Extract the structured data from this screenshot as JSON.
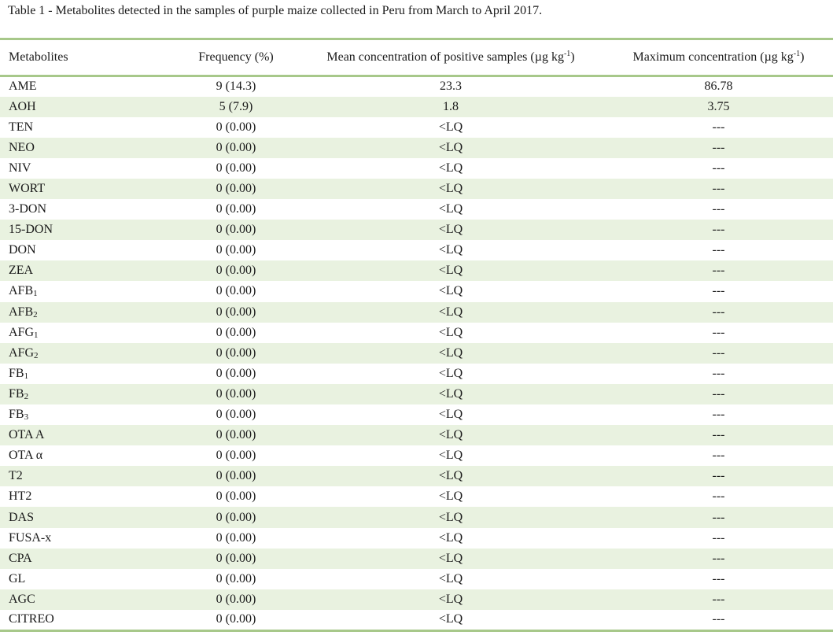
{
  "caption": "Table 1 - Metabolites detected in the samples of purple maize collected in Peru from March to April 2017.",
  "headers": {
    "metabolites": "Metabolites",
    "frequency": "Frequency (%)",
    "mean_prefix": "Mean concentration of positive samples (µg kg",
    "mean_sup": "-1",
    "mean_suffix": ")",
    "max_prefix": "Maximum concentration (µg kg",
    "max_sup": "-1",
    "max_suffix": ")"
  },
  "rows": [
    {
      "name": "AME",
      "sub": "",
      "frequency": "9 (14.3)",
      "mean": "23.3",
      "max": "86.78"
    },
    {
      "name": "AOH",
      "sub": "",
      "frequency": "5 (7.9)",
      "mean": "1.8",
      "max": "3.75"
    },
    {
      "name": "TEN",
      "sub": "",
      "frequency": "0 (0.00)",
      "mean": "<LQ",
      "max": "---"
    },
    {
      "name": "NEO",
      "sub": "",
      "frequency": "0 (0.00)",
      "mean": "<LQ",
      "max": "---"
    },
    {
      "name": "NIV",
      "sub": "",
      "frequency": "0 (0.00)",
      "mean": "<LQ",
      "max": "---"
    },
    {
      "name": "WORT",
      "sub": "",
      "frequency": "0 (0.00)",
      "mean": "<LQ",
      "max": "---"
    },
    {
      "name": "3-DON",
      "sub": "",
      "frequency": "0 (0.00)",
      "mean": "<LQ",
      "max": "---"
    },
    {
      "name": "15-DON",
      "sub": "",
      "frequency": "0 (0.00)",
      "mean": "<LQ",
      "max": "---"
    },
    {
      "name": "DON",
      "sub": "",
      "frequency": "0 (0.00)",
      "mean": "<LQ",
      "max": "---"
    },
    {
      "name": "ZEA",
      "sub": "",
      "frequency": "0 (0.00)",
      "mean": "<LQ",
      "max": "---"
    },
    {
      "name": "AFB",
      "sub": "1",
      "frequency": "0 (0.00)",
      "mean": "<LQ",
      "max": "---"
    },
    {
      "name": "AFB",
      "sub": "2",
      "frequency": "0 (0.00)",
      "mean": "<LQ",
      "max": "---"
    },
    {
      "name": "AFG",
      "sub": "1",
      "frequency": "0 (0.00)",
      "mean": "<LQ",
      "max": "---"
    },
    {
      "name": "AFG",
      "sub": "2",
      "frequency": "0 (0.00)",
      "mean": "<LQ",
      "max": "---"
    },
    {
      "name": "FB",
      "sub": "1",
      "frequency": "0 (0.00)",
      "mean": "<LQ",
      "max": "---"
    },
    {
      "name": "FB",
      "sub": "2",
      "frequency": "0 (0.00)",
      "mean": "<LQ",
      "max": "---"
    },
    {
      "name": "FB",
      "sub": "3",
      "frequency": "0 (0.00)",
      "mean": "<LQ",
      "max": "---"
    },
    {
      "name": "OTA A",
      "sub": "",
      "frequency": "0 (0.00)",
      "mean": "<LQ",
      "max": "---"
    },
    {
      "name": "OTA α",
      "sub": "",
      "frequency": "0 (0.00)",
      "mean": "<LQ",
      "max": "---"
    },
    {
      "name": "T2",
      "sub": "",
      "frequency": "0 (0.00)",
      "mean": "<LQ",
      "max": "---"
    },
    {
      "name": "HT2",
      "sub": "",
      "frequency": "0 (0.00)",
      "mean": "<LQ",
      "max": "---"
    },
    {
      "name": "DAS",
      "sub": "",
      "frequency": "0 (0.00)",
      "mean": "<LQ",
      "max": "---"
    },
    {
      "name": "FUSA-x",
      "sub": "",
      "frequency": "0 (0.00)",
      "mean": "<LQ",
      "max": "---"
    },
    {
      "name": "CPA",
      "sub": "",
      "frequency": "0 (0.00)",
      "mean": "<LQ",
      "max": "---"
    },
    {
      "name": "GL",
      "sub": "",
      "frequency": "0 (0.00)",
      "mean": "<LQ",
      "max": "---"
    },
    {
      "name": "AGC",
      "sub": "",
      "frequency": "0 (0.00)",
      "mean": "<LQ",
      "max": "---"
    },
    {
      "name": "CITREO",
      "sub": "",
      "frequency": "0 (0.00)",
      "mean": "<LQ",
      "max": "---"
    }
  ],
  "colors": {
    "rule": "#a7c88a",
    "shade": "#e9f2e0",
    "text": "#1a1a1a"
  }
}
